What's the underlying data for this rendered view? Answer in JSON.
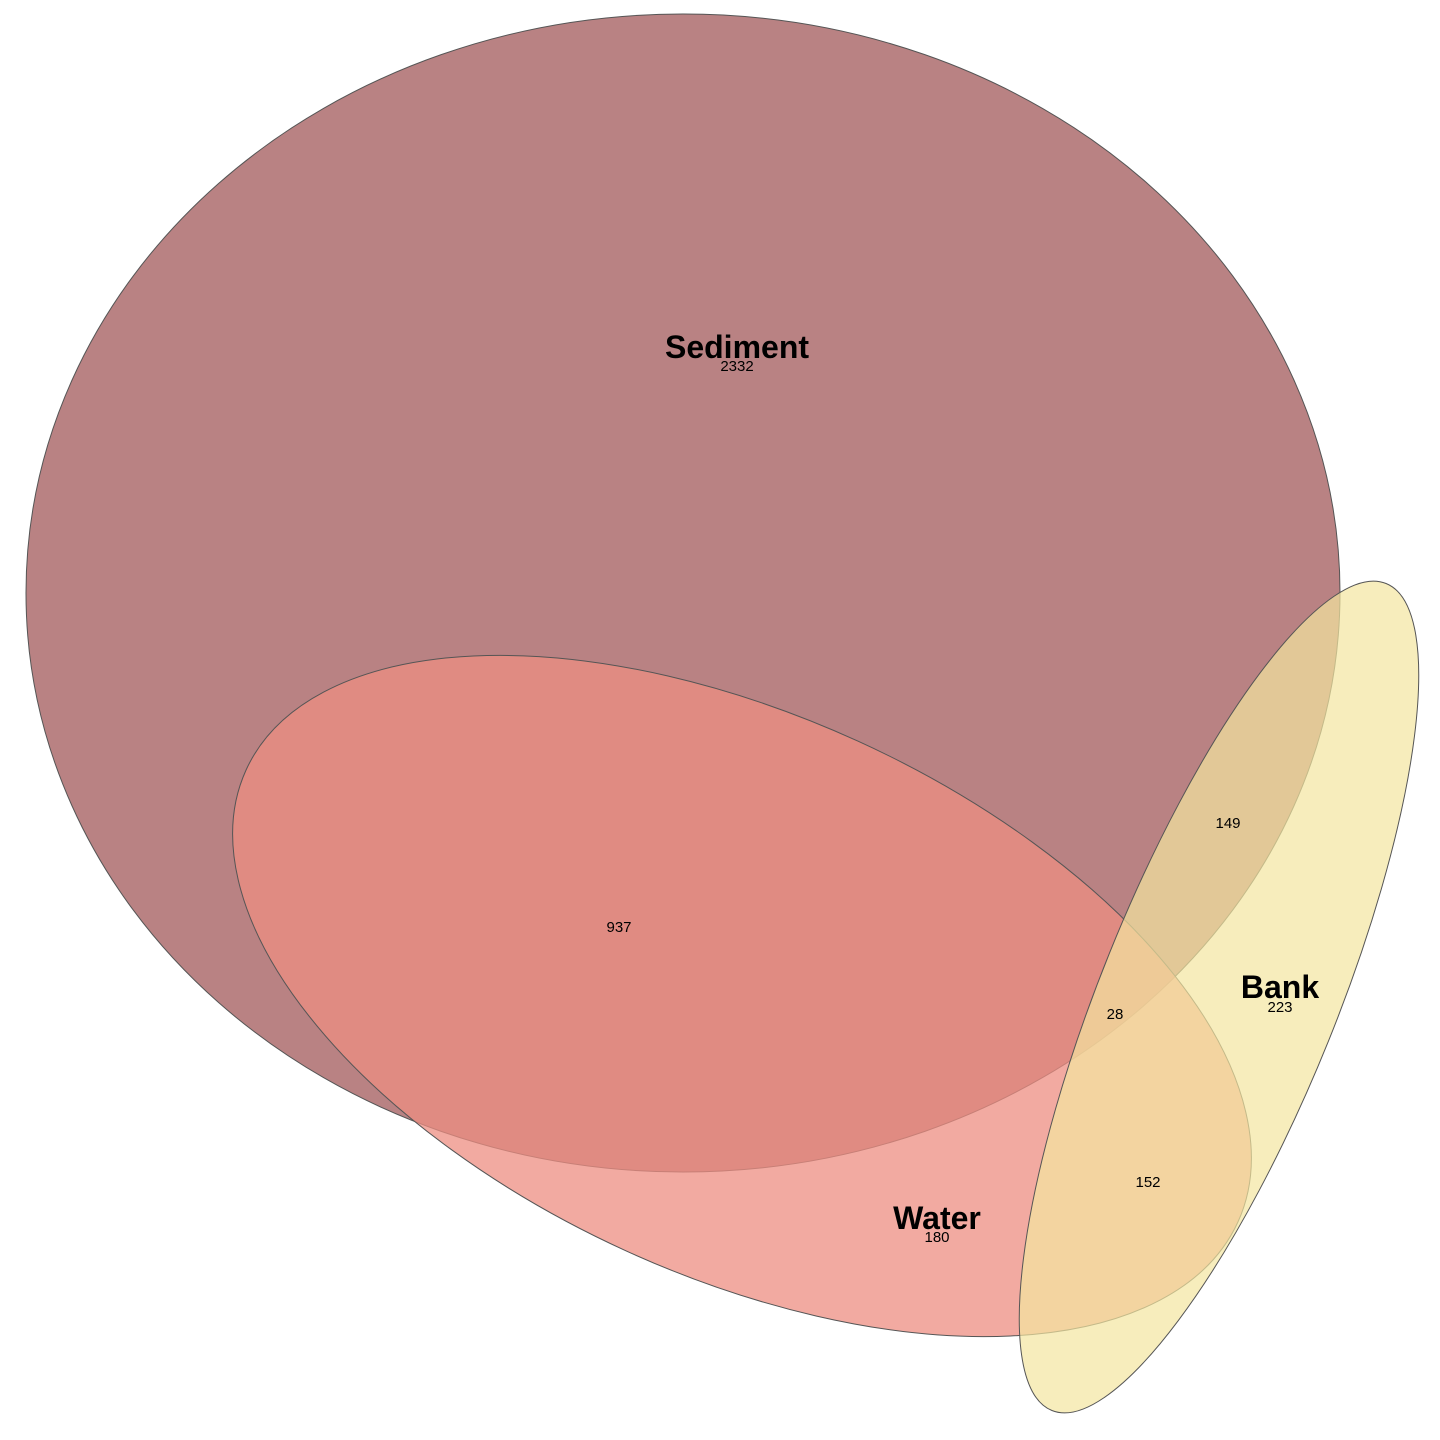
{
  "diagram": {
    "type": "venn",
    "sets": [
      {
        "key": "sediment",
        "label": "Sediment",
        "only_count": "2332",
        "color": "#8b2e31"
      },
      {
        "key": "water",
        "label": "Water",
        "only_count": "180",
        "color": "#ee8d81"
      },
      {
        "key": "bank",
        "label": "Bank",
        "only_count": "223",
        "color": "#f3e6a0"
      }
    ],
    "intersections": {
      "sediment_water": "937",
      "sediment_bank": "149",
      "water_bank": "152",
      "sediment_water_bank": "28"
    }
  }
}
